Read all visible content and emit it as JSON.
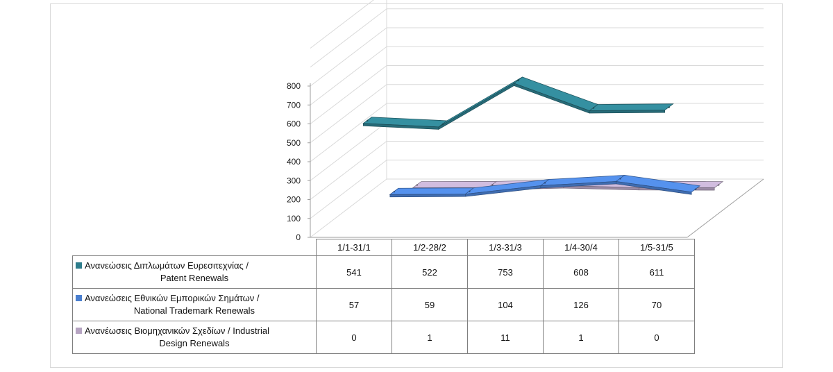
{
  "chart_data": {
    "type": "line",
    "categories": [
      "1/1-31/1",
      "1/2-28/2",
      "1/3-31/3",
      "1/4-30/4",
      "1/5-31/5"
    ],
    "series": [
      {
        "name_line1": "Ανανεώσεις Διπλωμάτων Ευρεσιτεχνίας  /",
        "name_line2": "Patent Renewals",
        "values": [
          541,
          522,
          753,
          608,
          611
        ],
        "color": "#2e7d8c"
      },
      {
        "name_line1": "Ανανεώσεις Εθνικών Εμπορικών Σημάτων /",
        "name_line2": "National Trademark Renewals",
        "values": [
          57,
          59,
          104,
          126,
          70
        ],
        "color": "#4a7fcf"
      },
      {
        "name_line1": "Ανανέωσεις Βιομηχανικών Σχεδίων / Industrial",
        "name_line2": "Design Renewals",
        "values": [
          0,
          1,
          11,
          1,
          0
        ],
        "color": "#b6a4c2"
      }
    ],
    "y_ticks": [
      "0",
      "100",
      "200",
      "300",
      "400",
      "500",
      "600",
      "700",
      "800"
    ],
    "ylim": [
      0,
      800
    ],
    "grid": true,
    "legend": "data table below chart"
  }
}
